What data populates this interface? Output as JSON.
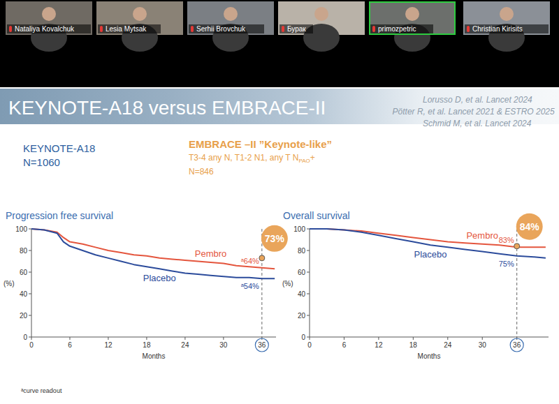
{
  "participants": [
    "Nataliya Kovalchuk",
    "Lesia Mytsak",
    "Serhii Brovchuk",
    "Бурак",
    "primozpetric",
    "Christian Kirisits"
  ],
  "slide": {
    "title": "KEYNOTE-A18 versus EMBRACE-II",
    "references": [
      "Lorusso D, et al. Lancet 2024",
      "Pötter R, et al. Lancet 2021 & ESTRO 2025",
      "Schmid M, et al. Lancet 2024"
    ],
    "left_heading": "KEYNOTE-A18",
    "left_n": "N=1060",
    "right_heading": "EMBRACE –II ”Keynote-like”",
    "right_criteria": "T3-4 any N, T1-2 N1, any T N",
    "right_criteria_sub": "PAO",
    "right_criteria_suffix": "+",
    "right_n": "N=846",
    "footnote": "ᵃcurve readout"
  },
  "chart_data": [
    {
      "type": "line",
      "title": "Progression free survival",
      "x_label": "Months",
      "y_label": "(%)",
      "xlim": [
        0,
        38.2
      ],
      "ylim": [
        0,
        100
      ],
      "xticks": [
        0,
        6,
        12,
        18,
        24,
        30,
        36
      ],
      "yticks": [
        0,
        20,
        40,
        60,
        80,
        100
      ],
      "grid": false,
      "line_style": "solid",
      "x": [
        0,
        2,
        4,
        5,
        6,
        8,
        10,
        12,
        14,
        16,
        18,
        20,
        22,
        24,
        26,
        28,
        30,
        32,
        34,
        36,
        38
      ],
      "series": [
        {
          "name": "Pembro",
          "color": "#e4553d",
          "values": [
            100,
            99,
            97,
            92,
            88,
            86,
            83,
            80,
            78,
            76,
            75,
            73,
            72,
            71,
            70,
            69,
            68,
            66,
            65,
            64,
            63
          ]
        },
        {
          "name": "Placebo",
          "color": "#2b4b9b",
          "values": [
            100,
            99,
            96,
            88,
            84,
            80,
            76,
            73,
            70,
            67,
            65,
            63,
            61,
            59,
            58,
            57,
            56,
            55,
            55,
            54,
            54
          ]
        }
      ],
      "highlight": {
        "text": "73%",
        "x": 36,
        "y": 73,
        "color": "#e9a55b"
      },
      "annotations": [
        {
          "text": "ᵃ64%",
          "x": 36,
          "y": 64,
          "color": "#e4553d"
        },
        {
          "text": "ᵃ54%",
          "x": 36,
          "y": 54,
          "color": "#2b4b9b"
        }
      ]
    },
    {
      "type": "line",
      "title": "Overall survival",
      "x_label": "Months",
      "y_label": "(%)",
      "xlim": [
        0,
        41.5
      ],
      "ylim": [
        0,
        100
      ],
      "xticks": [
        0,
        6,
        12,
        18,
        24,
        30,
        36
      ],
      "yticks": [
        0,
        20,
        40,
        60,
        80,
        100
      ],
      "grid": false,
      "line_style": "solid",
      "x": [
        0,
        3,
        6,
        9,
        12,
        15,
        18,
        21,
        24,
        27,
        30,
        33,
        36,
        39,
        41
      ],
      "series": [
        {
          "name": "Pembro",
          "color": "#e4553d",
          "values": [
            100,
            100,
            99,
            98,
            96,
            94,
            92,
            90,
            88,
            87,
            86,
            85,
            83,
            83,
            83
          ]
        },
        {
          "name": "Placebo",
          "color": "#2b4b9b",
          "values": [
            100,
            100,
            99,
            97,
            94,
            91,
            88,
            85,
            83,
            81,
            79,
            77,
            75,
            74,
            73
          ]
        }
      ],
      "highlight": {
        "text": "84%",
        "x": 36,
        "y": 84,
        "color": "#e9a55b"
      },
      "annotations": [
        {
          "text": "83%",
          "x": 36,
          "y": 83,
          "color": "#e4553d"
        },
        {
          "text": "75%",
          "x": 36,
          "y": 75,
          "color": "#2b4b9b"
        }
      ]
    }
  ]
}
